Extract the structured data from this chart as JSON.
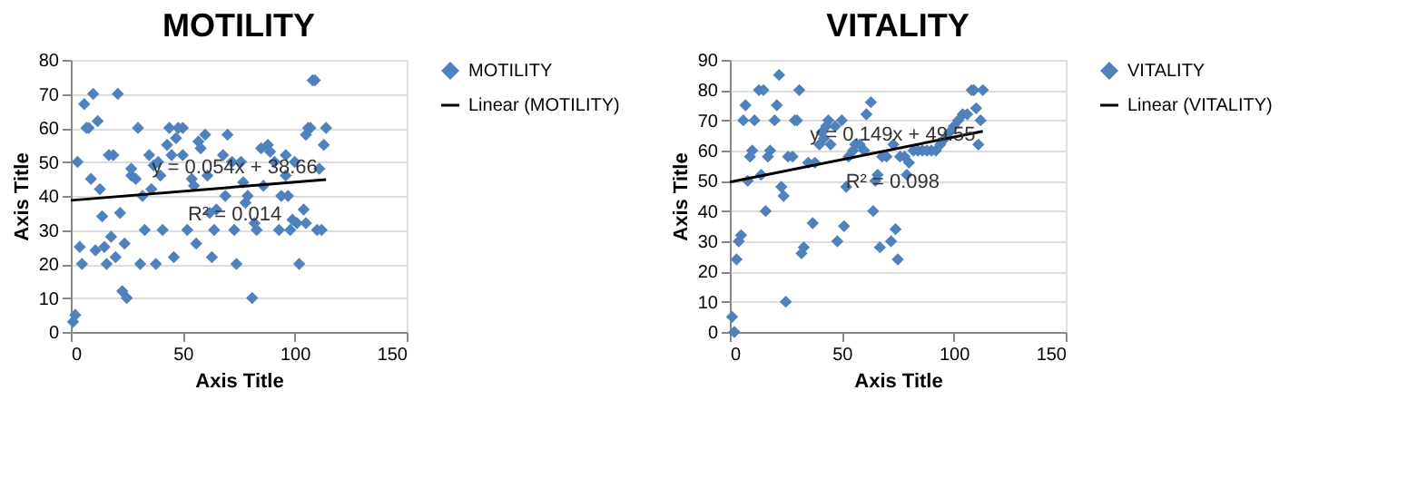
{
  "chart_data": [
    {
      "type": "scatter",
      "title": "MOTILITY",
      "xlabel": "Axis Title",
      "ylabel": "Axis Title",
      "xlim": [
        0,
        150
      ],
      "xticks": [
        0,
        50,
        100,
        150
      ],
      "ylim": [
        0,
        80
      ],
      "yticks": [
        0,
        10,
        20,
        30,
        40,
        50,
        60,
        70,
        80
      ],
      "grid": "y",
      "legend": "right",
      "marker": "diamond",
      "annotations": [
        "y = 0.054x + 38.66",
        "R² = 0.014"
      ],
      "series": [
        {
          "name": "MOTILITY",
          "type": "scatter",
          "color": "#4f81bd",
          "x": [
            1,
            2,
            3,
            4,
            5,
            6,
            7,
            8,
            9,
            10,
            11,
            12,
            13,
            14,
            15,
            16,
            17,
            18,
            19,
            20,
            21,
            22,
            23,
            24,
            25,
            27,
            27,
            29,
            30,
            31,
            32,
            33,
            35,
            36,
            37,
            38,
            39,
            40,
            41,
            43,
            44,
            45,
            46,
            47,
            48,
            50,
            50,
            52,
            54,
            55,
            56,
            57,
            58,
            60,
            61,
            62,
            63,
            64,
            65,
            68,
            69,
            70,
            72,
            73,
            74,
            76,
            77,
            78,
            79,
            81,
            82,
            83,
            85,
            86,
            88,
            89,
            91,
            93,
            94,
            96,
            96,
            97,
            98,
            99,
            100,
            101,
            102,
            104,
            105,
            105,
            106,
            107,
            108,
            109,
            110,
            111,
            112,
            113,
            114
          ],
          "values": [
            3,
            5,
            50,
            25,
            20,
            67,
            60,
            60,
            45,
            70,
            24,
            62,
            42,
            34,
            25,
            20,
            52,
            28,
            52,
            22,
            70,
            35,
            12,
            26,
            10,
            46,
            48,
            45,
            60,
            20,
            40,
            30,
            52,
            42,
            49,
            20,
            50,
            46,
            30,
            55,
            60,
            52,
            22,
            57,
            60,
            52,
            60,
            30,
            45,
            43,
            26,
            56,
            54,
            58,
            46,
            35,
            22,
            30,
            36,
            52,
            40,
            58,
            50,
            30,
            20,
            50,
            44,
            38,
            40,
            10,
            32,
            30,
            54,
            43,
            55,
            53,
            50,
            30,
            40,
            52,
            46,
            40,
            30,
            33,
            50,
            32,
            20,
            36,
            32,
            58,
            60,
            60,
            74,
            74,
            30,
            48,
            30,
            55,
            60
          ]
        },
        {
          "name": "Linear (MOTILITY)",
          "type": "line",
          "marker": "none",
          "line_style": "solid",
          "color": "#000000",
          "x": [
            0,
            114
          ],
          "values": [
            38.7,
            44.8
          ]
        }
      ]
    },
    {
      "type": "scatter",
      "title": "VITALITY",
      "xlabel": "Axis Title",
      "ylabel": "Axis Title",
      "xlim": [
        0,
        150
      ],
      "xticks": [
        0,
        50,
        100,
        150
      ],
      "ylim": [
        0,
        90
      ],
      "yticks": [
        0,
        10,
        20,
        30,
        40,
        50,
        60,
        70,
        80,
        90
      ],
      "grid": "y",
      "legend": "right",
      "marker": "diamond",
      "annotations": [
        "y = 0.149x + 49.55",
        "R² = 0.098"
      ],
      "series": [
        {
          "name": "VITALITY",
          "type": "scatter",
          "color": "#4f81bd",
          "x": [
            1,
            2,
            3,
            4,
            5,
            6,
            7,
            8,
            9,
            10,
            11,
            13,
            14,
            15,
            16,
            17,
            18,
            20,
            21,
            22,
            23,
            24,
            25,
            26,
            28,
            29,
            30,
            31,
            32,
            33,
            35,
            37,
            38,
            40,
            41,
            42,
            43,
            44,
            45,
            47,
            48,
            50,
            51,
            52,
            53,
            55,
            56,
            58,
            60,
            61,
            63,
            64,
            65,
            66,
            67,
            68,
            70,
            72,
            73,
            74,
            75,
            76,
            78,
            79,
            80,
            82,
            84,
            86,
            88,
            90,
            92,
            94,
            96,
            98,
            100,
            102,
            104,
            106,
            108,
            109,
            110,
            111,
            112,
            113
          ],
          "values": [
            5,
            0,
            24,
            30,
            32,
            70,
            75,
            50,
            58,
            60,
            70,
            80,
            52,
            80,
            40,
            58,
            60,
            70,
            75,
            85,
            48,
            45,
            10,
            58,
            58,
            70,
            70,
            80,
            26,
            28,
            56,
            36,
            56,
            62,
            66,
            64,
            68,
            70,
            62,
            68,
            30,
            70,
            35,
            48,
            58,
            60,
            62,
            62,
            60,
            72,
            76,
            40,
            50,
            52,
            28,
            58,
            58,
            30,
            62,
            34,
            24,
            58,
            58,
            52,
            56,
            60,
            60,
            60,
            60,
            60,
            60,
            62,
            64,
            66,
            68,
            70,
            72,
            72,
            80,
            80,
            74,
            62,
            70,
            80
          ]
        },
        {
          "name": "Linear (VITALITY)",
          "type": "line",
          "marker": "none",
          "line_style": "solid",
          "color": "#000000",
          "x": [
            0,
            113
          ],
          "values": [
            49.6,
            66.4
          ]
        }
      ]
    }
  ]
}
